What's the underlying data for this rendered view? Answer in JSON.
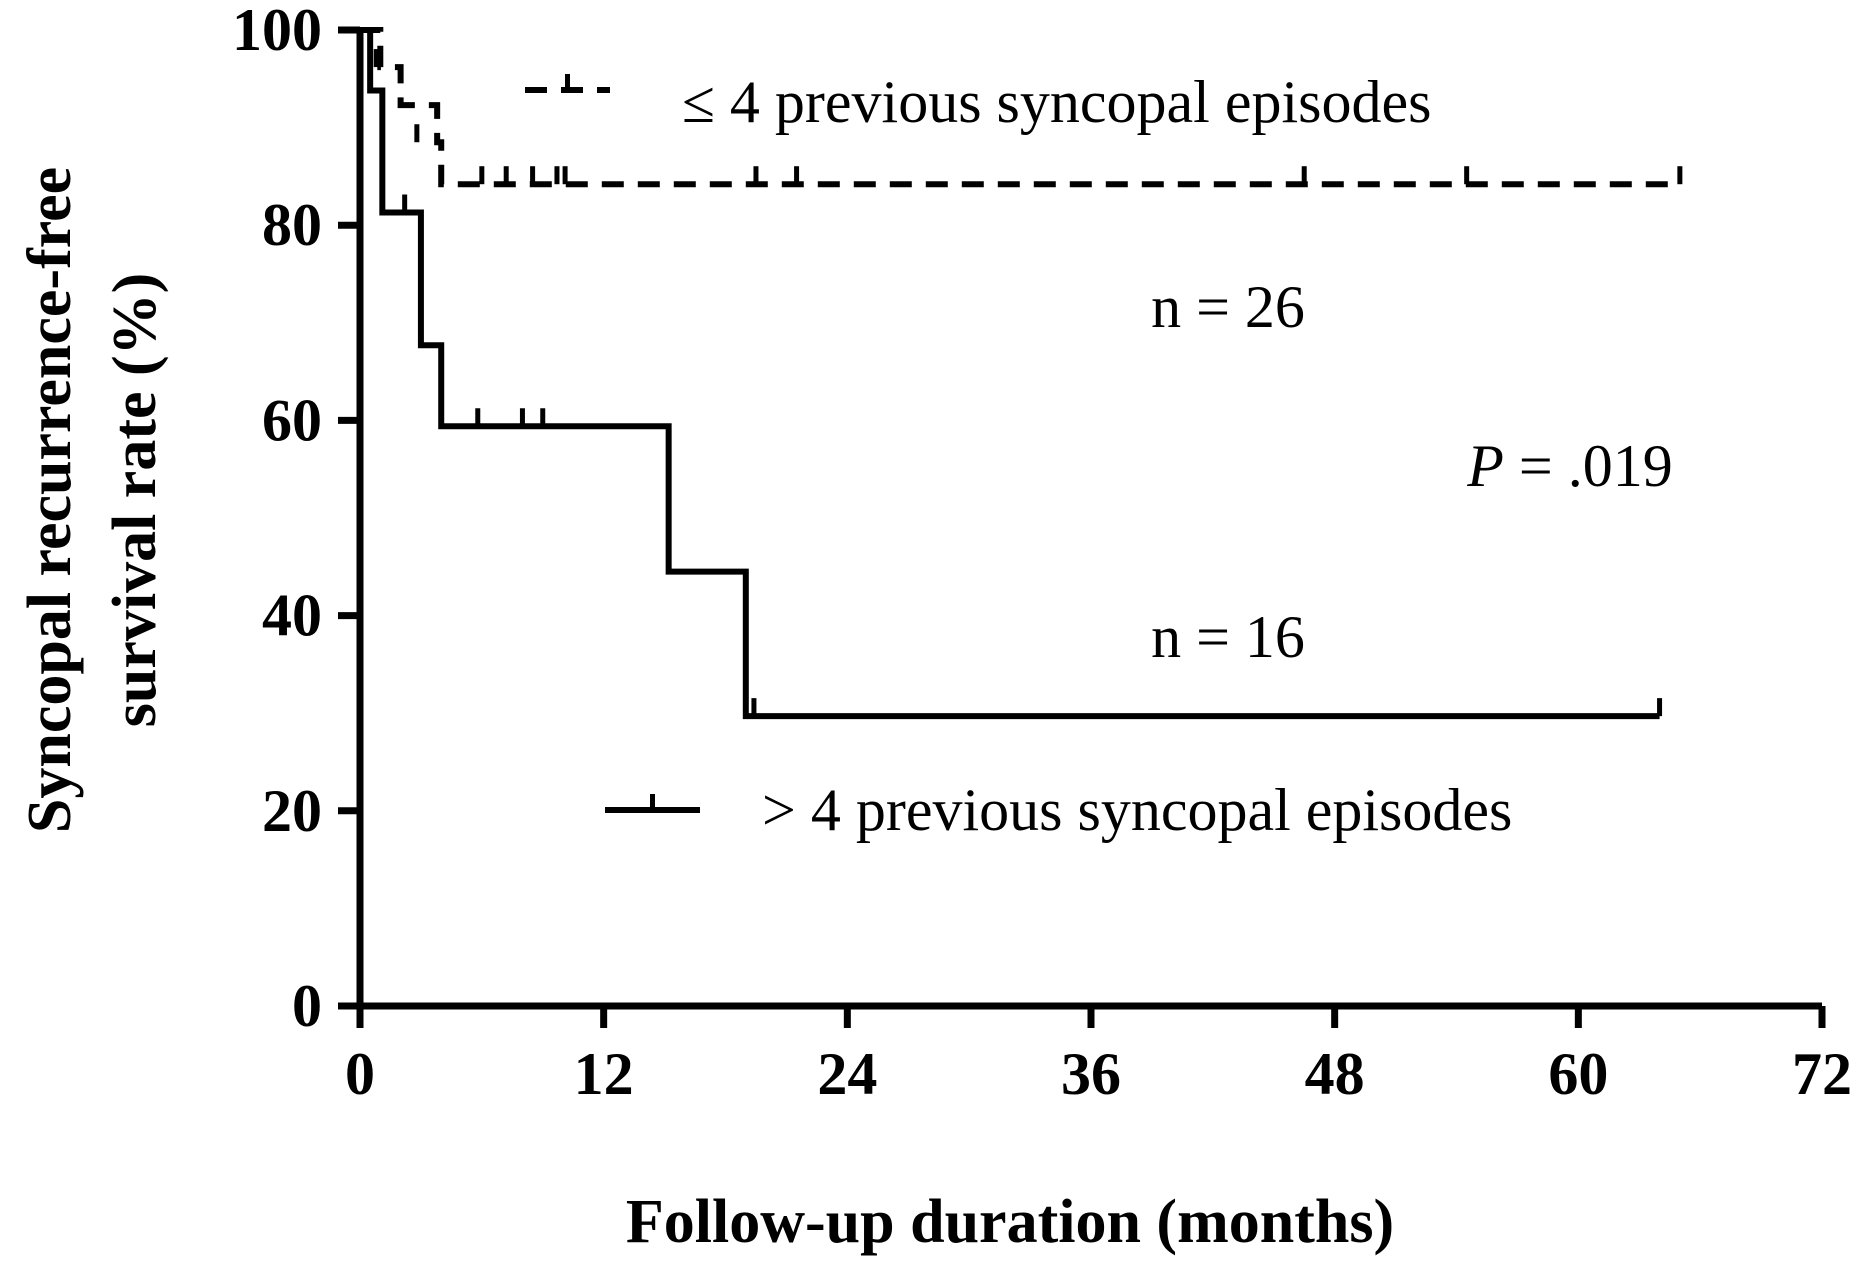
{
  "chart_data": {
    "type": "line",
    "subtype": "kaplan-meier survival curve",
    "xlabel": "Follow-up duration (months)",
    "ylabel_line1": "Syncopal recurrence-free",
    "ylabel_line2": "survival rate (%)",
    "xlim": [
      0,
      72
    ],
    "ylim": [
      0,
      100
    ],
    "xticks": [
      0,
      12,
      24,
      36,
      48,
      60,
      72
    ],
    "yticks": [
      0,
      20,
      40,
      60,
      80,
      100
    ],
    "grid": false,
    "legend_position": "inside, one entry near top-center and one near lower-center",
    "series": [
      {
        "name": "≤ 4 previous syncopal episodes",
        "line_style": "dashed",
        "color": "#000000",
        "steps": [
          [
            0,
            100
          ],
          [
            1,
            96.2
          ],
          [
            2,
            92.3
          ],
          [
            3.8,
            88.5
          ],
          [
            4,
            84.2
          ],
          [
            65,
            84.2
          ]
        ],
        "censored": [
          [
            0.8,
            96.2
          ],
          [
            2.8,
            88.5
          ],
          [
            6,
            84.2
          ],
          [
            7.2,
            84.2
          ],
          [
            8.5,
            84.2
          ],
          [
            9.7,
            84.2
          ],
          [
            10.1,
            84.2
          ],
          [
            19.5,
            84.2
          ],
          [
            21.5,
            84.2
          ],
          [
            46.5,
            84.2
          ],
          [
            54.5,
            84.2
          ],
          [
            65,
            84.2
          ]
        ],
        "n_label": "n = 26"
      },
      {
        "name": "> 4 previous syncopal episodes",
        "line_style": "solid",
        "color": "#000000",
        "steps": [
          [
            0,
            100
          ],
          [
            0.5,
            93.8
          ],
          [
            1.1,
            81.3
          ],
          [
            3,
            67.7
          ],
          [
            4,
            59.4
          ],
          [
            15.2,
            44.5
          ],
          [
            19,
            29.7
          ],
          [
            64,
            29.7
          ]
        ],
        "censored": [
          [
            2.2,
            81.3
          ],
          [
            5.8,
            59.4
          ],
          [
            8,
            59.4
          ],
          [
            9,
            59.4
          ],
          [
            19.4,
            29.7
          ],
          [
            64,
            29.7
          ]
        ],
        "n_label": "n = 16"
      }
    ],
    "annotations": {
      "p_label": "P",
      "p_value": " = .019"
    }
  }
}
